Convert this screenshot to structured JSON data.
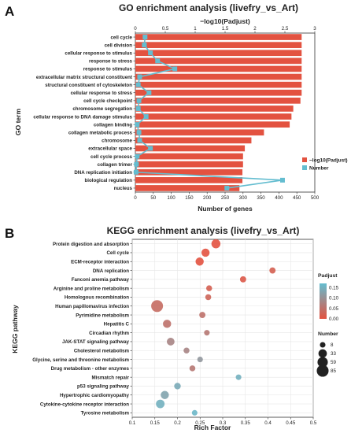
{
  "panel_a_letter": "A",
  "panel_b_letter": "B",
  "chart_data": [
    {
      "type": "bar",
      "title": "GO enrichment analysis (livefry_vs_Art)",
      "ylabel": "GO term",
      "xlabel": "Number of genes",
      "top_axis_label": "−log10(Padjust)",
      "categories": [
        "cell cycle",
        "cell division",
        "cellular response to stimulus",
        "response to stress",
        "response to stimulus",
        "extracellular matrix structural constituent",
        "structural constituent of cytoskeleton",
        "cellular response to stress",
        "cell cycle checkpoint",
        "chromosome segregation",
        "cellular response to DNA damage stimulus",
        "collagen binding",
        "collagen metabolic process",
        "chromosome",
        "extracellular space",
        "cell cycle process",
        "collagen trimer",
        "DNA replication initiation",
        "biological regulation",
        "nucleus"
      ],
      "series": [
        {
          "name": "−log10(Padjust)",
          "axis": "top",
          "color": "#e35240",
          "values": [
            2.78,
            2.78,
            2.78,
            2.78,
            2.78,
            2.78,
            2.78,
            2.78,
            2.76,
            2.64,
            2.61,
            2.58,
            2.15,
            1.94,
            1.83,
            1.8,
            1.8,
            1.79,
            1.79,
            1.74
          ]
        },
        {
          "name": "Number",
          "axis": "bottom",
          "color": "#64bdd0",
          "values": [
            27,
            25,
            42,
            62,
            110,
            12,
            8,
            38,
            10,
            8,
            30,
            5,
            10,
            12,
            42,
            5,
            3,
            2,
            410,
            255
          ]
        }
      ],
      "xlim_bottom": [
        0,
        500
      ],
      "xticks_bottom": [
        "0",
        "50",
        "100",
        "150",
        "200",
        "250",
        "300",
        "350",
        "400",
        "450",
        "500"
      ],
      "xlim_top": [
        0,
        3
      ],
      "xticks_top": [
        "0",
        "0.5",
        "1",
        "1.5",
        "2",
        "2.5",
        "3"
      ],
      "legend": [
        "−log10(Padjust)",
        "Number"
      ],
      "legend_position": "right"
    },
    {
      "type": "scatter",
      "title": "KEGG enrichment analysis (livefry_vs_Art)",
      "ylabel": "KEGG pathway",
      "xlabel": "Rich Factor",
      "xlim": [
        0.1,
        0.5
      ],
      "xticks": [
        "0.1",
        "0.15",
        "0.2",
        "0.25",
        "0.3",
        "0.35",
        "0.4",
        "0.45",
        "0.5"
      ],
      "categories": [
        "Protein digestion and absorption",
        "Cell cycle",
        "ECM-receptor interaction",
        "DNA replication",
        "Fanconi anemia pathway",
        "Arginine and proline metabolism",
        "Homologous recombination",
        "Human papillomavirus infection",
        "Pyrimidine metabolism",
        "Hepatitis C",
        "Circadian rhythm",
        "JAK-STAT signaling pathway",
        "Cholesterol metabolism",
        "Glycine, serine and threonine metabolism",
        "Drug metabolism - other enzymes",
        "Mismatch repair",
        "p53 signaling pathway",
        "Hypertrophic cardiomyopathy",
        "Cytokine-cytokine receptor interaction",
        "Tyrosine metabolism"
      ],
      "x": [
        0.285,
        0.262,
        0.249,
        0.41,
        0.345,
        0.27,
        0.268,
        0.155,
        0.255,
        0.177,
        0.265,
        0.185,
        0.22,
        0.25,
        0.233,
        0.335,
        0.2,
        0.172,
        0.162,
        0.238
      ],
      "size": [
        40,
        30,
        30,
        12,
        12,
        10,
        10,
        85,
        12,
        30,
        8,
        25,
        10,
        8,
        10,
        8,
        15,
        30,
        35,
        8
      ],
      "padjust": [
        0.0,
        0.0,
        0.0,
        0.02,
        0.01,
        0.02,
        0.03,
        0.04,
        0.05,
        0.05,
        0.06,
        0.08,
        0.08,
        0.11,
        0.06,
        0.15,
        0.14,
        0.13,
        0.15,
        0.16
      ],
      "colorbar": {
        "title": "Padjust",
        "ticks": [
          "0.15",
          "0.10",
          "0.05",
          "0.00"
        ],
        "range": [
          0,
          0.17
        ],
        "low_color": "#e35240",
        "high_color": "#64bdd0"
      },
      "size_legend": {
        "title": "Number",
        "values": [
          8,
          33,
          59,
          85
        ]
      },
      "grid": true
    }
  ]
}
